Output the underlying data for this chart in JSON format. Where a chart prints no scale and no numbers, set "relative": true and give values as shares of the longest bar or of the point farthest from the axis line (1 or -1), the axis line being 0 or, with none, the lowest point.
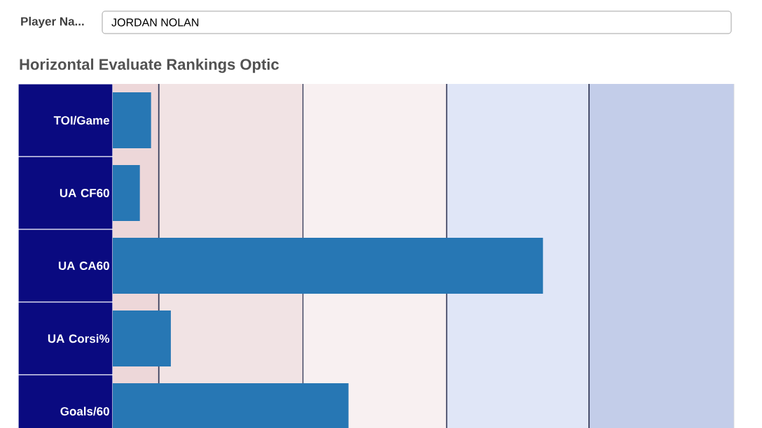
{
  "chart_data": {
    "type": "bar",
    "orientation": "horizontal",
    "relative": true,
    "title": "Horizontal Evaluate Rankings Optic",
    "annotations": [
      "Player Na...",
      "JORDAN NOLAN"
    ],
    "categories": [
      "TOI/Game",
      "UA CF60",
      "UA CA60",
      "UA Corsi%",
      "Goals/60"
    ],
    "values": [
      0.089,
      0.063,
      1,
      0.135,
      0.548
    ],
    "color": "#2777b4",
    "bands": [
      {
        "axis": "x",
        "from": 0,
        "to": 0.107,
        "color": "#edd7d9"
      },
      {
        "axis": "x",
        "from": 0.107,
        "to": 0.442,
        "color": "#f1e3e4"
      },
      {
        "axis": "x",
        "from": 0.442,
        "to": 0.776,
        "color": "#f8f0f1"
      },
      {
        "axis": "x",
        "from": 0.776,
        "to": 1.107,
        "color": "#e0e6f7"
      },
      {
        "axis": "x",
        "from": 1.107,
        "to": 1.444,
        "color": "#c3cde9"
      }
    ],
    "ref_lines": [
      {
        "axis": "x",
        "value": 0.107,
        "color": "#3a3f5e"
      },
      {
        "axis": "x",
        "value": 0.442,
        "color": "#3a3f5e"
      },
      {
        "axis": "x",
        "value": 0.776,
        "color": "#3a3f5e"
      },
      {
        "axis": "x",
        "value": 1.107,
        "color": "#3a3f5e"
      }
    ]
  }
}
